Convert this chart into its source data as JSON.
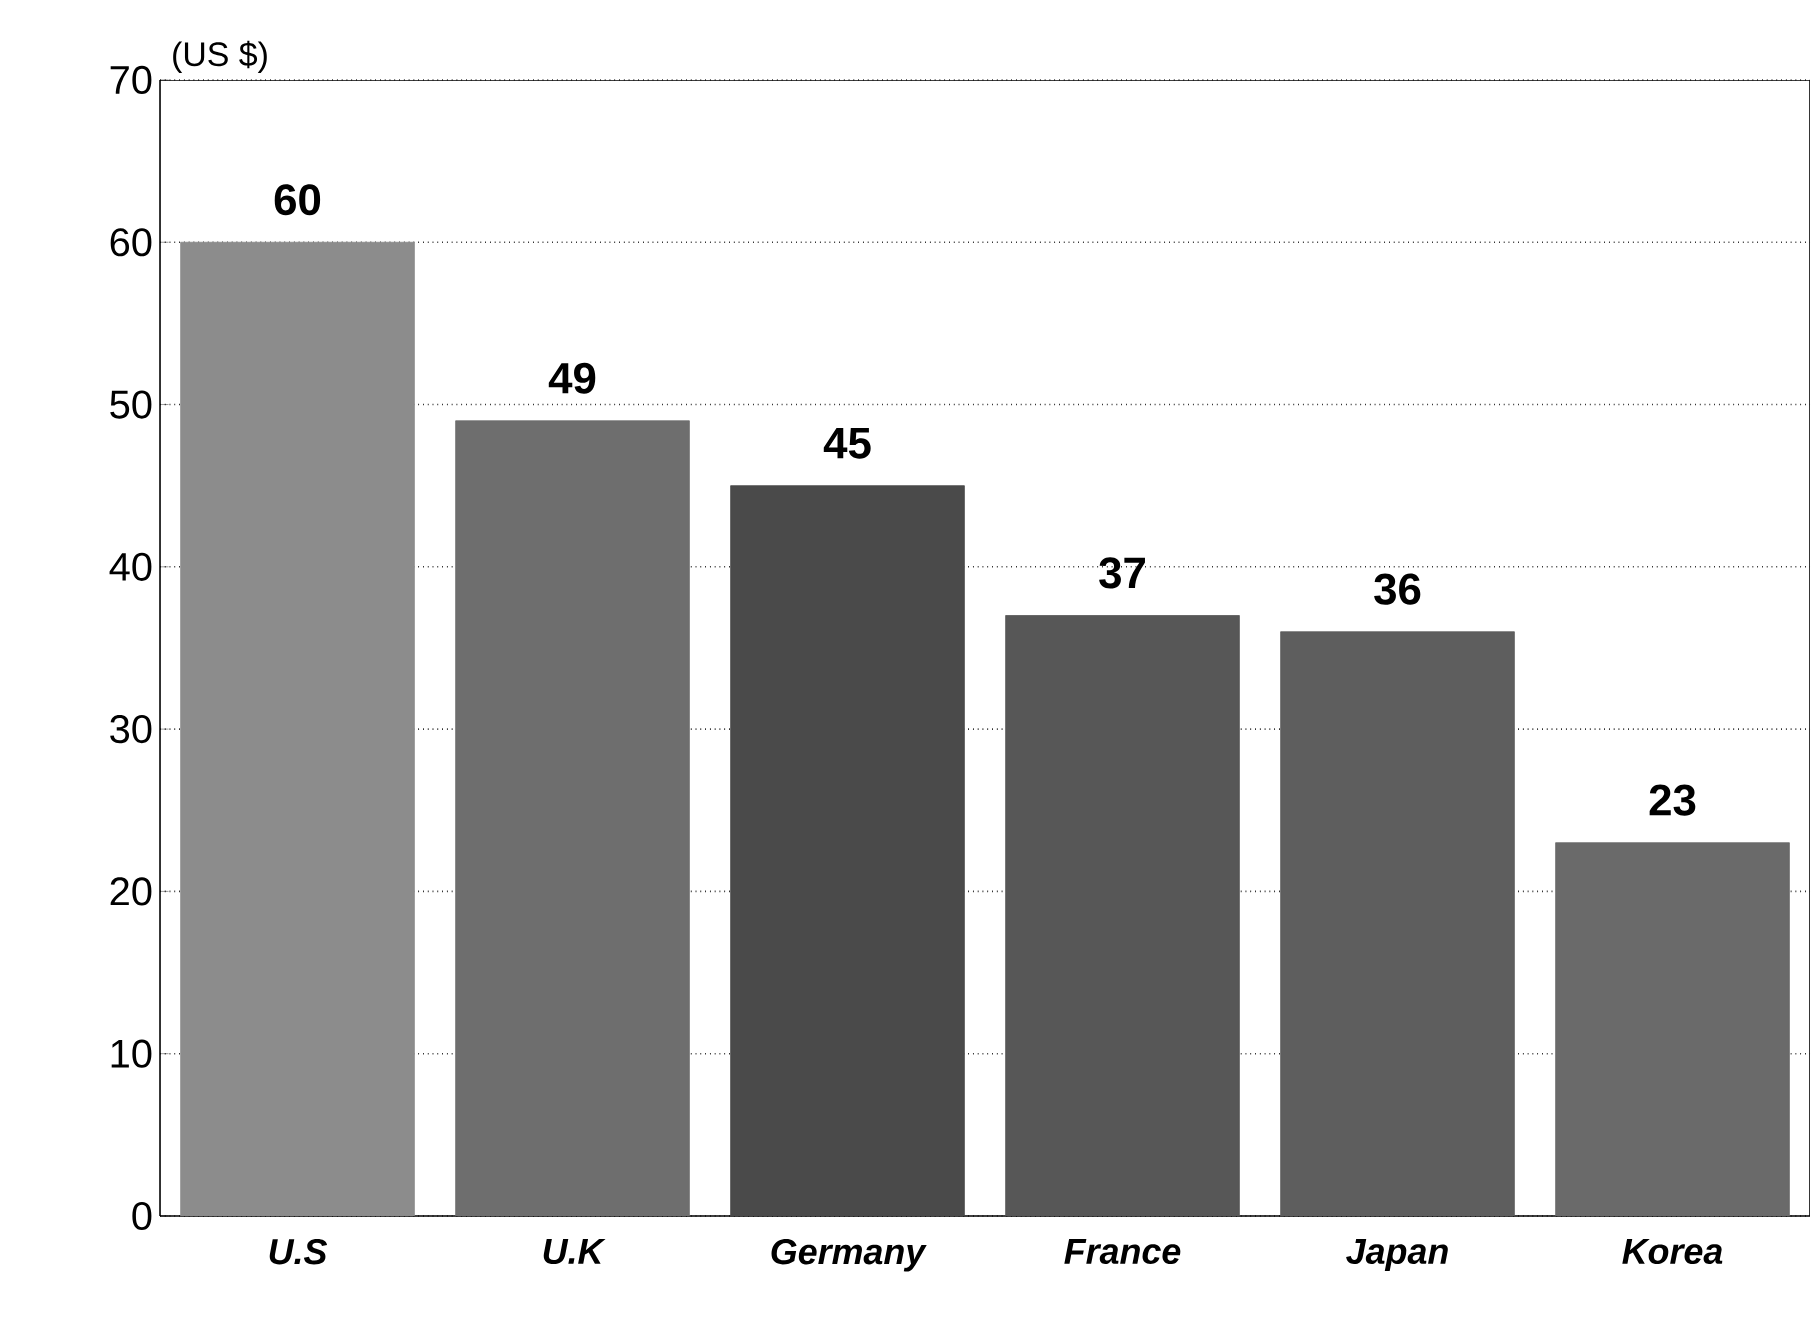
{
  "chart_data": {
    "type": "bar",
    "ylabel": "(US $)",
    "categories": [
      "U.S",
      "U.K",
      "Germany",
      "France",
      "Japan",
      "Korea"
    ],
    "values": [
      60,
      49,
      45,
      37,
      36,
      23
    ],
    "colors": [
      "#8c8c8c",
      "#6e6e6e",
      "#4a4a4a",
      "#575757",
      "#5e5e5e",
      "#6a6a6a"
    ],
    "ylim": [
      0,
      70
    ],
    "yticks": [
      0,
      10,
      20,
      30,
      40,
      50,
      60,
      70
    ],
    "grid": "y",
    "data_labels": true
  }
}
